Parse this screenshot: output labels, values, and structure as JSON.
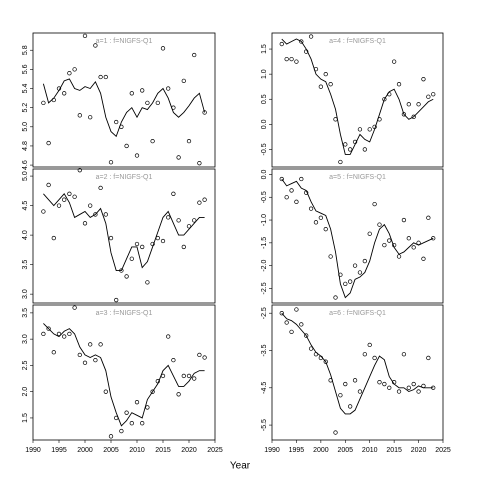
{
  "xlabel": "Year",
  "chart_data": [
    {
      "type": "line",
      "title": "a=1  :  f=NIGFS-Q1",
      "x": [
        1992,
        1993,
        1994,
        1995,
        1996,
        1997,
        1998,
        1999,
        2000,
        2001,
        2002,
        2003,
        2004,
        2005,
        2006,
        2007,
        2008,
        2009,
        2010,
        2011,
        2012,
        2013,
        2014,
        2015,
        2016,
        2017,
        2018,
        2019,
        2020,
        2021,
        2022,
        2023
      ],
      "xlim": [
        1990,
        2025
      ],
      "ylim": [
        4.58,
        5.98
      ],
      "yticks": [
        4.6,
        4.8,
        {
          "value": 5,
          "label": "5.0"
        },
        5.2,
        5.4,
        5.6,
        5.8
      ],
      "series": [
        {
          "style": "points",
          "color": "#000000",
          "values": [
            5.25,
            4.83,
            5.28,
            5.4,
            5.35,
            5.56,
            5.6,
            5.12,
            5.95,
            5.1,
            5.85,
            5.52,
            5.52,
            4.63,
            5.05,
            5.0,
            4.8,
            5.35,
            4.7,
            5.38,
            5.25,
            4.85,
            5.25,
            5.82,
            5.4,
            5.2,
            4.68,
            5.48,
            4.85,
            5.75,
            4.62,
            5.15
          ]
        },
        {
          "style": "line",
          "color": "#000000",
          "values": [
            5.45,
            5.25,
            5.3,
            5.38,
            5.48,
            5.5,
            5.4,
            5.38,
            5.42,
            5.4,
            5.47,
            5.35,
            5.1,
            4.95,
            4.9,
            5.05,
            5.15,
            5.2,
            5.1,
            5.2,
            5.18,
            5.25,
            5.35,
            5.4,
            5.3,
            5.15,
            5.1,
            5.15,
            5.22,
            5.3,
            5.35,
            5.15
          ]
        }
      ]
    },
    {
      "type": "line",
      "title": "a=2  :  f=NIGFS-Q1",
      "x": [
        1992,
        1993,
        1994,
        1995,
        1996,
        1997,
        1998,
        1999,
        2000,
        2001,
        2002,
        2003,
        2004,
        2005,
        2006,
        2007,
        2008,
        2009,
        2010,
        2011,
        2012,
        2013,
        2014,
        2015,
        2016,
        2017,
        2018,
        2019,
        2020,
        2021,
        2022,
        2023
      ],
      "xlim": [
        1990,
        2025
      ],
      "ylim": [
        2.85,
        5.12
      ],
      "yticks": [
        {
          "value": 3,
          "label": "3.0"
        },
        3.5,
        {
          "value": 4,
          "label": "4.0"
        },
        4.5,
        {
          "value": 5,
          "label": "5.0"
        }
      ],
      "series": [
        {
          "style": "points",
          "color": "#000000",
          "values": [
            4.4,
            4.85,
            3.95,
            4.5,
            4.6,
            4.7,
            4.65,
            5.1,
            4.2,
            4.5,
            4.35,
            4.8,
            4.35,
            3.95,
            2.9,
            3.4,
            3.3,
            3.6,
            3.85,
            3.8,
            3.2,
            3.85,
            3.95,
            3.9,
            4.3,
            4.7,
            4.25,
            3.8,
            4.15,
            4.25,
            4.55,
            4.6
          ]
        },
        {
          "style": "line",
          "color": "#000000",
          "values": [
            4.7,
            4.6,
            4.5,
            4.6,
            4.7,
            4.55,
            4.3,
            4.35,
            4.4,
            4.3,
            4.35,
            4.45,
            4.2,
            3.7,
            3.4,
            3.4,
            3.6,
            3.8,
            3.8,
            3.45,
            3.55,
            3.8,
            4.05,
            4.3,
            4.4,
            4.2,
            4.0,
            4.0,
            4.1,
            4.2,
            4.3,
            4.3
          ]
        }
      ]
    },
    {
      "type": "line",
      "title": "a=3  :  f=NIGFS-Q1",
      "x": [
        1992,
        1993,
        1994,
        1995,
        1996,
        1997,
        1998,
        1999,
        2000,
        2001,
        2002,
        2003,
        2004,
        2005,
        2006,
        2007,
        2008,
        2009,
        2010,
        2011,
        2012,
        2013,
        2014,
        2015,
        2016,
        2017,
        2018,
        2019,
        2020,
        2021,
        2022,
        2023
      ],
      "xlim": [
        1990,
        2025
      ],
      "ylim": [
        1.08,
        3.65
      ],
      "yticks": [
        1.5,
        {
          "value": 2,
          "label": "2.0"
        },
        2.5,
        {
          "value": 3,
          "label": "3.0"
        },
        3.5
      ],
      "xticks": [
        1990,
        1995,
        2000,
        2005,
        2010,
        2015,
        2020,
        2025
      ],
      "series": [
        {
          "style": "points",
          "color": "#000000",
          "values": [
            3.1,
            3.2,
            2.75,
            3.1,
            3.05,
            3.1,
            3.6,
            2.7,
            2.55,
            2.9,
            2.6,
            2.9,
            2.0,
            1.15,
            1.5,
            1.25,
            1.6,
            1.4,
            1.8,
            1.4,
            1.7,
            2.0,
            2.2,
            2.3,
            3.05,
            2.6,
            1.95,
            2.3,
            2.3,
            2.25,
            2.7,
            2.65
          ]
        },
        {
          "style": "line",
          "color": "#000000",
          "values": [
            3.3,
            3.2,
            3.1,
            3.05,
            3.15,
            3.2,
            3.1,
            2.85,
            2.7,
            2.65,
            2.7,
            2.65,
            2.4,
            1.9,
            1.6,
            1.35,
            1.45,
            1.6,
            1.55,
            1.5,
            1.85,
            2.0,
            2.15,
            2.4,
            2.5,
            2.3,
            2.1,
            2.1,
            2.2,
            2.35,
            2.4,
            2.4
          ]
        }
      ]
    },
    {
      "type": "line",
      "title": "a=4  :  f=NIGFS-Q1",
      "x": [
        1992,
        1993,
        1994,
        1995,
        1996,
        1997,
        1998,
        1999,
        2000,
        2001,
        2002,
        2003,
        2004,
        2005,
        2006,
        2007,
        2008,
        2009,
        2010,
        2011,
        2012,
        2013,
        2014,
        2015,
        2016,
        2017,
        2018,
        2019,
        2020,
        2021,
        2022,
        2023
      ],
      "xlim": [
        1990,
        2025
      ],
      "ylim": [
        -0.85,
        1.82
      ],
      "yticks": [
        -0.5,
        {
          "value": 0,
          "label": "0.0"
        },
        0.5,
        {
          "value": 1,
          "label": "1.0"
        },
        1.5
      ],
      "series": [
        {
          "style": "points",
          "color": "#000000",
          "values": [
            1.6,
            1.3,
            1.3,
            1.25,
            1.65,
            1.45,
            1.75,
            1.1,
            0.75,
            1.0,
            0.8,
            0.1,
            -0.75,
            -0.4,
            -0.5,
            -0.35,
            -0.1,
            -0.5,
            -0.1,
            -0.05,
            0.1,
            0.5,
            0.6,
            1.25,
            0.8,
            0.2,
            0.4,
            0.15,
            0.4,
            0.9,
            0.55,
            0.6
          ]
        },
        {
          "style": "line",
          "color": "#000000",
          "values": [
            1.7,
            1.6,
            1.65,
            1.7,
            1.65,
            1.5,
            1.3,
            1.0,
            0.9,
            0.85,
            0.6,
            0.3,
            -0.2,
            -0.6,
            -0.6,
            -0.4,
            -0.2,
            -0.3,
            -0.35,
            -0.1,
            0.2,
            0.5,
            0.65,
            0.7,
            0.5,
            0.2,
            0.1,
            0.15,
            0.25,
            0.35,
            0.45,
            0.5
          ]
        }
      ]
    },
    {
      "type": "line",
      "title": "a=5  :  f=NIGFS-Q1",
      "x": [
        1992,
        1993,
        1994,
        1995,
        1996,
        1997,
        1998,
        1999,
        2000,
        2001,
        2002,
        2003,
        2004,
        2005,
        2006,
        2007,
        2008,
        2009,
        2010,
        2011,
        2012,
        2013,
        2014,
        2015,
        2016,
        2017,
        2018,
        2019,
        2020,
        2021,
        2022,
        2023
      ],
      "xlim": [
        1990,
        2025
      ],
      "ylim": [
        -2.82,
        0.12
      ],
      "yticks": [
        {
          "value": 0,
          "label": "0.0"
        },
        -0.5,
        {
          "value": -1,
          "label": "-1.0"
        },
        -1.5,
        {
          "value": -2,
          "label": "-2.0"
        },
        -2.5
      ],
      "series": [
        {
          "style": "points",
          "color": "#000000",
          "values": [
            -0.1,
            -0.5,
            -0.35,
            -0.6,
            -0.1,
            -0.4,
            -0.75,
            -1.05,
            -0.95,
            -1.2,
            -1.8,
            -2.7,
            -2.2,
            -2.4,
            -2.35,
            -2.0,
            -2.15,
            -1.9,
            -1.3,
            -0.65,
            -1.1,
            -1.55,
            -1.45,
            -1.55,
            -1.8,
            -1.0,
            -1.4,
            -1.6,
            -1.5,
            -1.85,
            -0.95,
            -1.4
          ]
        },
        {
          "style": "line",
          "color": "#000000",
          "values": [
            -0.1,
            -0.25,
            -0.2,
            -0.15,
            -0.3,
            -0.35,
            -0.6,
            -0.8,
            -0.85,
            -0.9,
            -1.2,
            -1.7,
            -2.4,
            -2.7,
            -2.6,
            -2.3,
            -2.25,
            -2.15,
            -1.9,
            -1.5,
            -1.2,
            -1.1,
            -1.3,
            -1.6,
            -1.75,
            -1.7,
            -1.6,
            -1.5,
            -1.55,
            -1.5,
            -1.45,
            -1.4
          ]
        }
      ]
    },
    {
      "type": "line",
      "title": "a=6  :  f=NIGFS-Q1",
      "x": [
        1992,
        1993,
        1994,
        1995,
        1996,
        1997,
        1998,
        1999,
        2000,
        2001,
        2002,
        2003,
        2004,
        2005,
        2006,
        2007,
        2008,
        2009,
        2010,
        2011,
        2012,
        2013,
        2014,
        2015,
        2016,
        2017,
        2018,
        2019,
        2020,
        2021,
        2022,
        2023
      ],
      "xlim": [
        1990,
        2025
      ],
      "ylim": [
        -5.9,
        -2.28
      ],
      "yticks": [
        -2.5,
        -3.5,
        -4.5,
        -5.5
      ],
      "xticks": [
        1990,
        1995,
        2000,
        2005,
        2010,
        2015,
        2020,
        2025
      ],
      "series": [
        {
          "style": "points",
          "color": "#000000",
          "values": [
            -2.5,
            -2.75,
            -3.0,
            -2.4,
            -2.8,
            -3.1,
            -3.45,
            -3.6,
            -3.7,
            -3.8,
            -4.3,
            -5.7,
            -4.7,
            -4.4,
            -5.0,
            -4.3,
            -4.6,
            -3.6,
            -3.35,
            -3.7,
            -4.35,
            -4.4,
            -4.5,
            -4.35,
            -4.6,
            -3.6,
            -4.5,
            -4.4,
            -4.6,
            -4.45,
            -3.7,
            -4.5
          ]
        },
        {
          "style": "line",
          "color": "#000000",
          "values": [
            -2.5,
            -2.65,
            -2.7,
            -2.8,
            -2.95,
            -3.1,
            -3.35,
            -3.55,
            -3.65,
            -3.8,
            -4.15,
            -4.6,
            -5.05,
            -5.2,
            -5.2,
            -5.1,
            -4.8,
            -4.5,
            -4.2,
            -3.9,
            -3.65,
            -3.75,
            -4.2,
            -4.4,
            -4.5,
            -4.5,
            -4.6,
            -4.55,
            -4.45,
            -4.5,
            -4.5,
            -4.5
          ]
        }
      ]
    }
  ]
}
